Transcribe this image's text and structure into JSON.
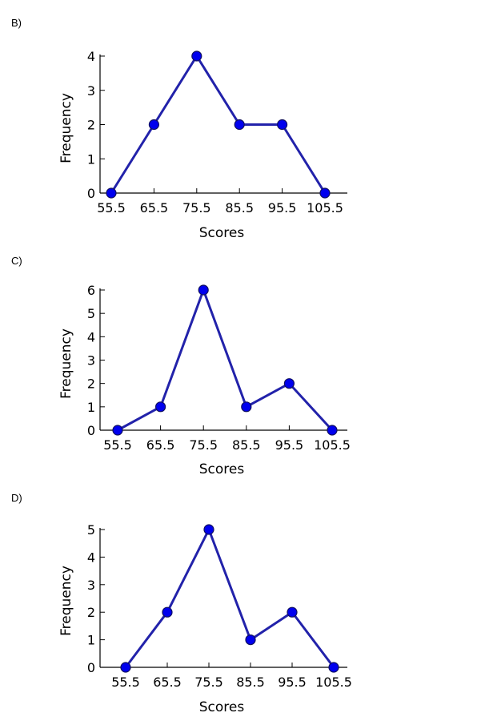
{
  "chart_data": [
    {
      "type": "line",
      "label": "B)",
      "xlabel": "Scores",
      "ylabel": "Frequency",
      "categories": [
        "55.5",
        "65.5",
        "75.5",
        "85.5",
        "95.5",
        "105.5"
      ],
      "values": [
        0,
        2,
        4,
        2,
        2,
        0
      ],
      "yticks": [
        0,
        1,
        2,
        3,
        4
      ],
      "ylim": [
        0,
        4
      ],
      "line_color": "#2222aa",
      "marker_color": "#0000ee",
      "grid": false
    },
    {
      "type": "line",
      "label": "C)",
      "xlabel": "Scores",
      "ylabel": "Frequency",
      "categories": [
        "55.5",
        "65.5",
        "75.5",
        "85.5",
        "95.5",
        "105.5"
      ],
      "values": [
        0,
        1,
        6,
        1,
        2,
        0
      ],
      "yticks": [
        0,
        1,
        2,
        3,
        4,
        5,
        6
      ],
      "ylim": [
        0,
        6
      ],
      "line_color": "#2222aa",
      "marker_color": "#0000ee",
      "grid": false
    },
    {
      "type": "line",
      "label": "D)",
      "xlabel": "Scores",
      "ylabel": "Frequency",
      "categories": [
        "55.5",
        "65.5",
        "75.5",
        "85.5",
        "95.5",
        "105.5"
      ],
      "values": [
        0,
        2,
        5,
        1,
        2,
        0
      ],
      "yticks": [
        0,
        1,
        2,
        3,
        4,
        5
      ],
      "ylim": [
        0,
        5
      ],
      "line_color": "#2222aa",
      "marker_color": "#0000ee",
      "grid": false
    }
  ]
}
